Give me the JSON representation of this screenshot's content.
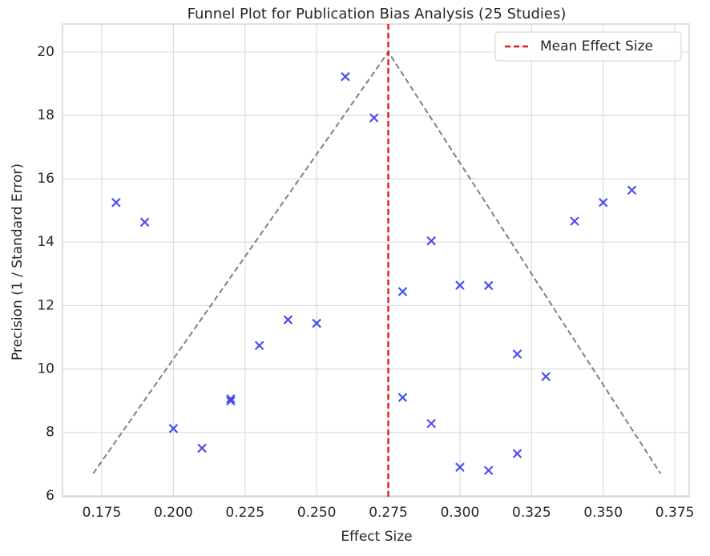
{
  "chart_data": {
    "type": "scatter",
    "title": "Funnel Plot for Publication Bias Analysis (25 Studies)",
    "x_label": "Effect Size",
    "y_label": "Precision (1 / Standard Error)",
    "series": [
      {
        "color": "#3b3bf0",
        "x": [
          0.18,
          0.19,
          0.2,
          0.21,
          0.22,
          0.22,
          0.23,
          0.24,
          0.25,
          0.26,
          0.27,
          0.28,
          0.28,
          0.29,
          0.29,
          0.3,
          0.3,
          0.31,
          0.31,
          0.32,
          0.32,
          0.33,
          0.34,
          0.35,
          0.36
        ],
        "values": [
          15.25,
          14.63,
          8.12,
          7.5,
          9.06,
          8.99,
          10.74,
          11.55,
          11.44,
          19.22,
          17.92,
          12.44,
          9.1,
          14.04,
          8.28,
          12.64,
          6.9,
          12.63,
          6.8,
          10.47,
          7.33,
          9.76,
          14.66,
          15.25,
          15.64
        ]
      }
    ],
    "funnel": {
      "color": "#808080",
      "x": [
        0.172,
        0.275,
        0.37
      ],
      "y": [
        6.7,
        20,
        6.7
      ]
    },
    "mean_line": {
      "name": "Mean Effect Size",
      "value": 0.275,
      "color": "#e31a1c"
    },
    "xlim": [
      0.1613,
      0.38
    ],
    "ylim": [
      5.97,
      20.88
    ],
    "xticks": [
      0.175,
      {
        "value": 0.2,
        "label": "0.200"
      },
      0.225,
      {
        "value": 0.25,
        "label": "0.250"
      },
      0.275,
      {
        "value": 0.3,
        "label": "0.300"
      },
      0.325,
      {
        "value": 0.35,
        "label": "0.350"
      },
      0.375
    ],
    "yticks": [
      6,
      8,
      10,
      12,
      14,
      16,
      18,
      20
    ],
    "grid": true,
    "legend": "upper right"
  }
}
